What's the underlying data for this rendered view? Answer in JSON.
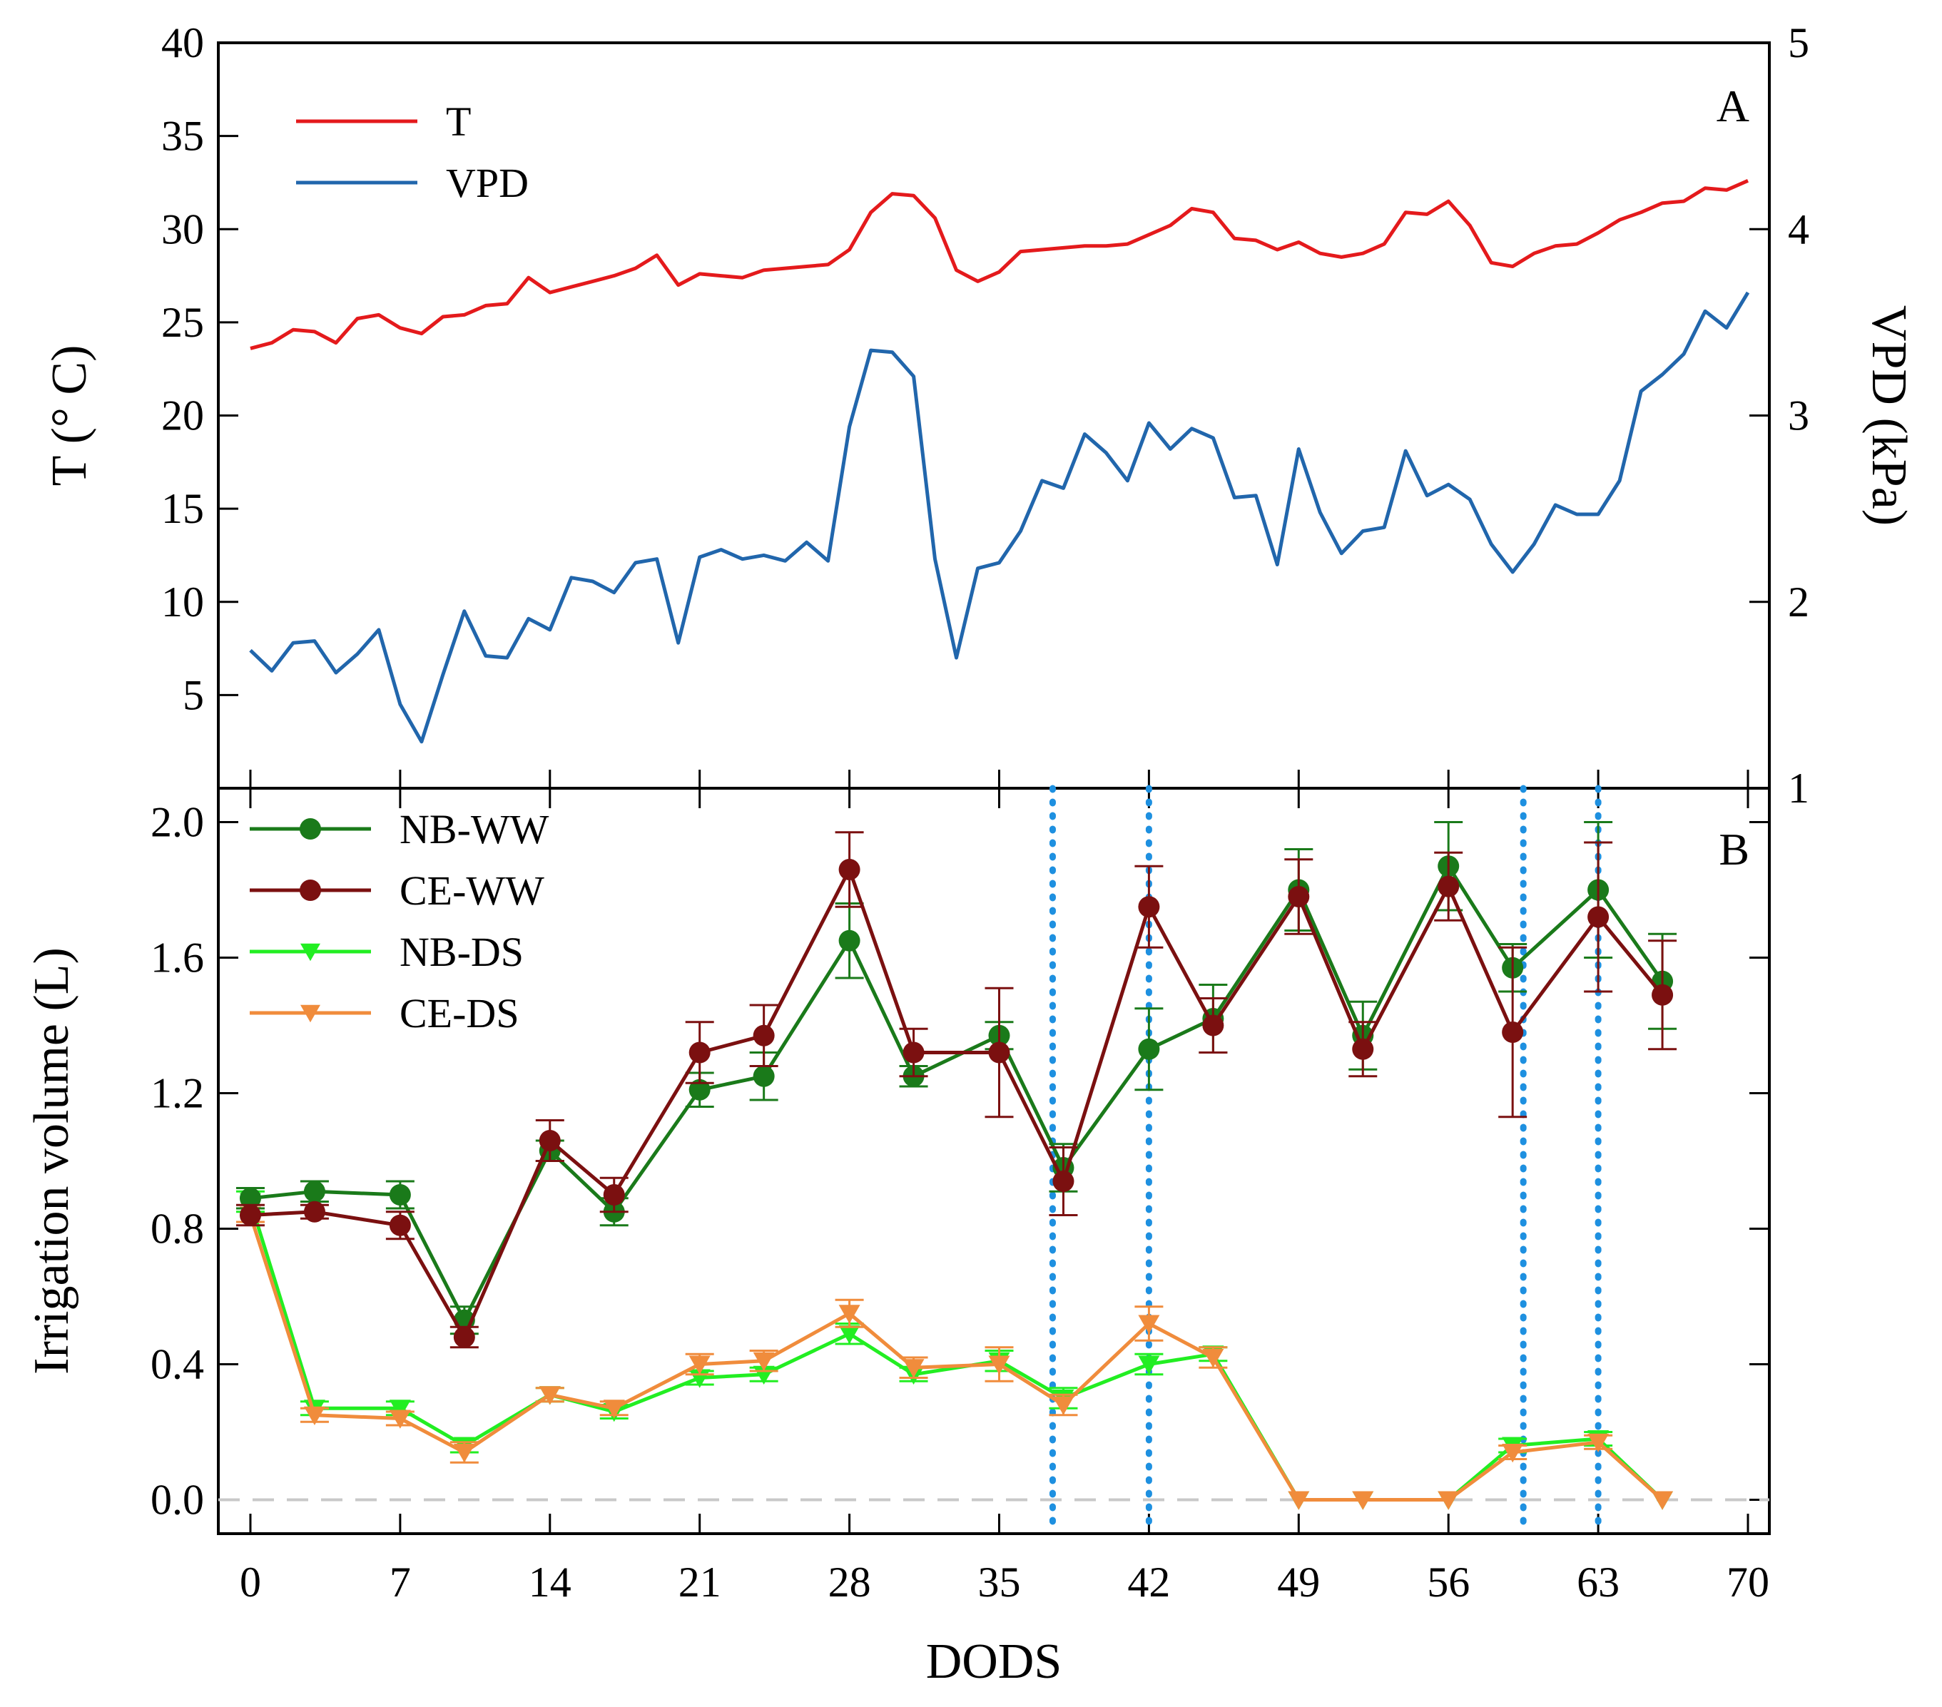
{
  "chart_data": [
    {
      "panel": "A",
      "type": "line",
      "xlim": [
        -1.5,
        71
      ],
      "x_ticks": [
        0,
        7,
        14,
        21,
        28,
        35,
        42,
        49,
        56,
        63,
        70
      ],
      "ylabel": "T (° C)",
      "ylim": [
        0,
        40
      ],
      "y_ticks": [
        5,
        10,
        15,
        20,
        25,
        30,
        35,
        40
      ],
      "y2label": "VPD (kPa)",
      "y2lim": [
        1,
        5
      ],
      "y2_ticks": [
        1,
        2,
        3,
        4,
        5
      ],
      "legend": "top-left",
      "series": [
        {
          "name": "T",
          "axis": "left",
          "color": "#e41a1c",
          "x": [
            0,
            1,
            2,
            3,
            4,
            5,
            6,
            7,
            8,
            9,
            10,
            11,
            12,
            13,
            14,
            15,
            16,
            17,
            18,
            19,
            20,
            21,
            22,
            23,
            24,
            25,
            26,
            27,
            28,
            29,
            30,
            31,
            32,
            33,
            34,
            35,
            36,
            37,
            38,
            39,
            40,
            41,
            42,
            43,
            44,
            45,
            46,
            47,
            48,
            49,
            50,
            51,
            52,
            53,
            54,
            55,
            56,
            57,
            58,
            59,
            60,
            61,
            62,
            63,
            64,
            65,
            66,
            67,
            68,
            69,
            70
          ],
          "values": [
            23.6,
            23.9,
            24.6,
            24.5,
            23.9,
            25.2,
            25.4,
            24.7,
            24.4,
            25.3,
            25.4,
            25.9,
            26.0,
            27.4,
            26.6,
            26.9,
            27.2,
            27.5,
            27.9,
            28.6,
            27.0,
            27.6,
            27.5,
            27.4,
            27.8,
            27.9,
            28.0,
            28.1,
            28.9,
            30.9,
            31.9,
            31.8,
            30.6,
            27.8,
            27.2,
            27.7,
            28.8,
            28.9,
            29.0,
            29.1,
            29.1,
            29.2,
            29.7,
            30.2,
            31.1,
            30.9,
            29.5,
            29.4,
            28.9,
            29.3,
            28.7,
            28.5,
            28.7,
            29.2,
            30.9,
            30.8,
            31.5,
            30.2,
            28.2,
            28.0,
            28.7,
            29.1,
            29.2,
            29.8,
            30.5,
            30.9,
            31.4,
            31.5,
            32.2,
            32.1,
            32.6
          ]
        },
        {
          "name": "VPD",
          "axis": "right",
          "color": "#2166ac",
          "x": [
            0,
            1,
            2,
            3,
            4,
            5,
            6,
            7,
            8,
            9,
            10,
            11,
            12,
            13,
            14,
            15,
            16,
            17,
            18,
            19,
            20,
            21,
            22,
            23,
            24,
            25,
            26,
            27,
            28,
            29,
            30,
            31,
            32,
            33,
            34,
            35,
            36,
            37,
            38,
            39,
            40,
            41,
            42,
            43,
            44,
            45,
            46,
            47,
            48,
            49,
            50,
            51,
            52,
            53,
            54,
            55,
            56,
            57,
            58,
            59,
            60,
            61,
            62,
            63,
            64,
            65,
            66,
            67,
            68,
            69,
            70
          ],
          "values": [
            1.74,
            1.63,
            1.78,
            1.79,
            1.62,
            1.72,
            1.85,
            1.45,
            1.25,
            1.61,
            1.95,
            1.71,
            1.7,
            1.91,
            1.85,
            2.13,
            2.11,
            2.05,
            2.21,
            2.23,
            1.78,
            2.24,
            2.28,
            2.23,
            2.25,
            2.22,
            2.32,
            2.22,
            2.94,
            3.35,
            3.34,
            3.21,
            2.23,
            1.7,
            2.18,
            2.21,
            2.38,
            2.65,
            2.61,
            2.9,
            2.8,
            2.65,
            2.96,
            2.82,
            2.93,
            2.88,
            2.56,
            2.57,
            2.2,
            2.82,
            2.48,
            2.26,
            2.38,
            2.4,
            2.81,
            2.57,
            2.63,
            2.55,
            2.31,
            2.16,
            2.31,
            2.52,
            2.47,
            2.47,
            2.65,
            3.13,
            3.22,
            3.33,
            3.56,
            3.47,
            3.66
          ]
        }
      ]
    },
    {
      "panel": "B",
      "type": "line",
      "xlabel": "DODS",
      "xlim": [
        -1.5,
        71
      ],
      "x_ticks": [
        0,
        7,
        14,
        21,
        28,
        35,
        42,
        49,
        56,
        63,
        70
      ],
      "ylabel": "Irrigation volume (L)",
      "ylim": [
        -0.1,
        2.1
      ],
      "y_ticks": [
        0.0,
        0.4,
        0.8,
        1.2,
        1.6,
        2.0
      ],
      "y_tick_labels": [
        "0.0",
        "0.4",
        "0.8",
        "1.2",
        "1.6",
        "2.0"
      ],
      "reference_line_y": 0,
      "vertical_markers_x": [
        37.5,
        42,
        59.5,
        63
      ],
      "legend": "top-left",
      "series": [
        {
          "name": "NB-WW",
          "marker": "circle",
          "color": "#1a7a1a",
          "x": [
            0,
            3,
            7,
            10,
            14,
            17,
            21,
            24,
            28,
            31,
            35,
            38,
            42,
            45,
            49,
            52,
            56,
            59,
            63,
            66
          ],
          "values": [
            0.89,
            0.91,
            0.9,
            0.53,
            1.03,
            0.85,
            1.21,
            1.25,
            1.65,
            1.25,
            1.37,
            0.98,
            1.33,
            1.42,
            1.8,
            1.37,
            1.87,
            1.57,
            1.8,
            1.53
          ],
          "errors": [
            0.03,
            0.03,
            0.04,
            0.04,
            0.03,
            0.04,
            0.05,
            0.07,
            0.11,
            0.03,
            0.04,
            0.07,
            0.12,
            0.1,
            0.12,
            0.1,
            0.13,
            0.07,
            0.2,
            0.14
          ]
        },
        {
          "name": "CE-WW",
          "marker": "circle",
          "color": "#7b1010",
          "x": [
            0,
            3,
            7,
            10,
            14,
            17,
            21,
            24,
            28,
            31,
            35,
            38,
            42,
            45,
            49,
            52,
            56,
            59,
            63,
            66
          ],
          "values": [
            0.84,
            0.85,
            0.81,
            0.48,
            1.06,
            0.9,
            1.32,
            1.37,
            1.86,
            1.32,
            1.32,
            0.94,
            1.75,
            1.4,
            1.78,
            1.33,
            1.81,
            1.38,
            1.72,
            1.49
          ],
          "errors": [
            0.03,
            0.02,
            0.04,
            0.03,
            0.06,
            0.05,
            0.09,
            0.09,
            0.11,
            0.07,
            0.19,
            0.1,
            0.12,
            0.08,
            0.11,
            0.08,
            0.1,
            0.25,
            0.22,
            0.16
          ]
        },
        {
          "name": "NB-DS",
          "marker": "triangle-down",
          "color": "#22ee22",
          "x": [
            0,
            3,
            7,
            10,
            14,
            17,
            21,
            24,
            28,
            31,
            35,
            38,
            42,
            45,
            49,
            52,
            56,
            59,
            63,
            66
          ],
          "values": [
            0.88,
            0.27,
            0.27,
            0.16,
            0.31,
            0.26,
            0.36,
            0.37,
            0.49,
            0.37,
            0.41,
            0.3,
            0.4,
            0.43,
            0.0,
            0.0,
            0.0,
            0.16,
            0.18,
            0.0
          ],
          "errors": [
            0.03,
            0.02,
            0.02,
            0.02,
            0.02,
            0.02,
            0.02,
            0.02,
            0.03,
            0.02,
            0.03,
            0.03,
            0.03,
            0.02,
            0.0,
            0.0,
            0.0,
            0.02,
            0.02,
            0.0
          ]
        },
        {
          "name": "CE-DS",
          "marker": "triangle-down",
          "color": "#f08c3c",
          "x": [
            0,
            3,
            7,
            10,
            14,
            17,
            21,
            24,
            28,
            31,
            35,
            38,
            42,
            45,
            49,
            52,
            56,
            59,
            63,
            66
          ],
          "values": [
            0.84,
            0.25,
            0.24,
            0.14,
            0.31,
            0.27,
            0.4,
            0.41,
            0.55,
            0.39,
            0.4,
            0.28,
            0.52,
            0.42,
            0.0,
            0.0,
            0.0,
            0.14,
            0.17,
            0.0
          ],
          "errors": [
            0.02,
            0.02,
            0.02,
            0.03,
            0.02,
            0.02,
            0.03,
            0.03,
            0.04,
            0.03,
            0.05,
            0.03,
            0.05,
            0.03,
            0.0,
            0.0,
            0.0,
            0.02,
            0.02,
            0.0
          ]
        }
      ]
    }
  ]
}
